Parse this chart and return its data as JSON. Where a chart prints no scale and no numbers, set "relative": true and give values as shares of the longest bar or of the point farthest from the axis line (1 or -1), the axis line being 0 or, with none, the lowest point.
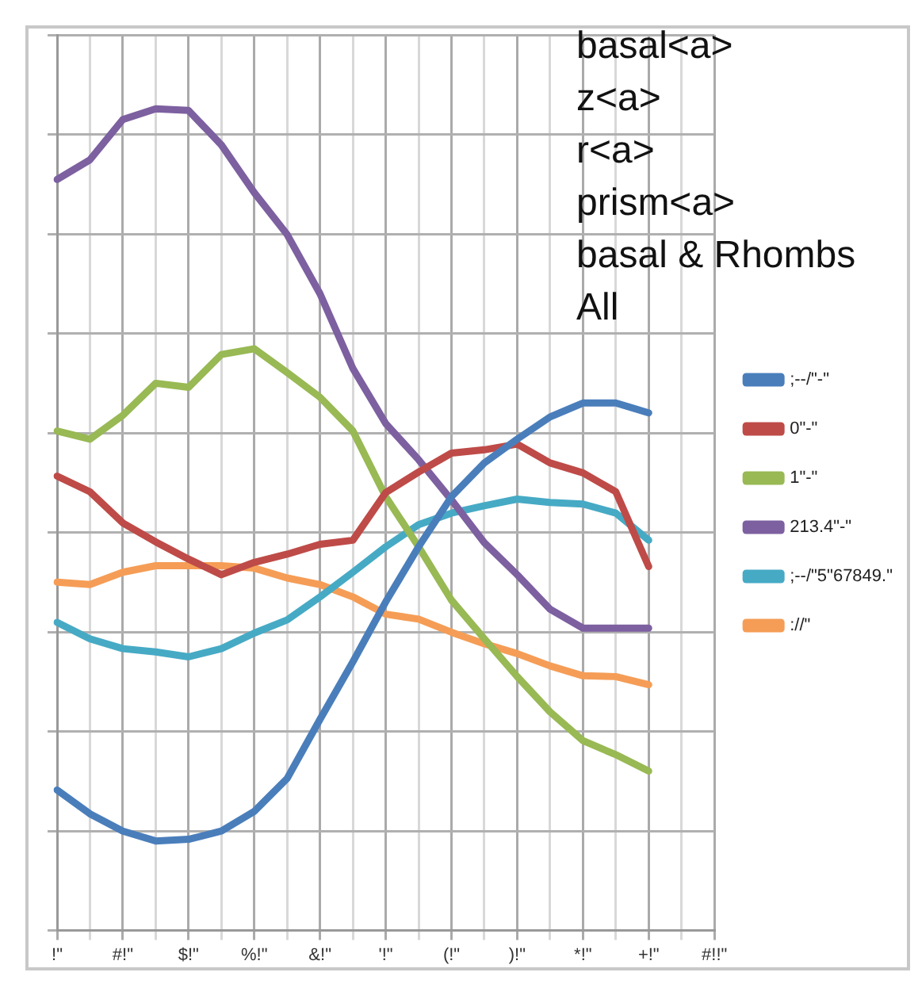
{
  "chart_data": {
    "type": "line",
    "relative": true,
    "categories": [
      "!\"",
      null,
      "#!\"",
      null,
      "$!\"",
      null,
      "%!\"",
      null,
      "&!\"",
      null,
      "'!\"",
      null,
      "(!\"",
      null,
      ")!\"",
      null,
      "*!\"",
      null,
      "+!\"",
      null,
      "#!!\""
    ],
    "series": [
      {
        "name": ";--/\"-\"",
        "color": "#4a7ebb",
        "values": [
          0.171,
          0.142,
          0.121,
          0.109,
          0.111,
          0.121,
          0.145,
          0.185,
          0.257,
          0.327,
          0.4,
          0.467,
          0.528,
          0.569,
          0.598,
          0.625,
          0.642,
          0.642,
          0.63,
          null,
          null
        ]
      },
      {
        "name": "0\"-\"",
        "color": "#be4b48",
        "values": [
          0.553,
          0.534,
          0.496,
          0.473,
          0.452,
          0.433,
          0.448,
          0.458,
          0.47,
          0.475,
          0.533,
          0.558,
          0.581,
          0.585,
          0.592,
          0.569,
          0.557,
          0.534,
          0.443,
          null,
          null
        ]
      },
      {
        "name": "1\"-\"",
        "color": "#98b954",
        "values": [
          0.608,
          0.598,
          0.627,
          0.666,
          0.661,
          0.701,
          0.708,
          0.679,
          0.649,
          0.608,
          0.528,
          0.467,
          0.402,
          0.355,
          0.309,
          0.266,
          0.231,
          0.214,
          0.194,
          null,
          null
        ]
      },
      {
        "name": "213.4\"-\"",
        "color": "#7d60a0",
        "values": [
          0.914,
          0.938,
          0.987,
          1,
          0.998,
          0.956,
          0.898,
          0.847,
          0.775,
          0.684,
          0.617,
          0.573,
          0.524,
          0.472,
          0.433,
          0.391,
          0.368,
          0.368,
          0.368,
          null,
          null
        ]
      },
      {
        "name": ";--/\"5\"67849.\"",
        "color": "#46aac5",
        "values": [
          0.375,
          0.355,
          0.343,
          0.339,
          0.333,
          0.343,
          0.362,
          0.378,
          0.406,
          0.436,
          0.467,
          0.494,
          0.508,
          0.517,
          0.525,
          0.521,
          0.519,
          0.508,
          0.475,
          null,
          null
        ]
      },
      {
        "name": "://\"",
        "color": "#f59d56",
        "values": [
          0.424,
          0.421,
          0.436,
          0.444,
          0.444,
          0.444,
          0.441,
          0.429,
          0.421,
          0.406,
          0.385,
          0.379,
          0.363,
          0.349,
          0.337,
          0.322,
          0.31,
          0.309,
          0.299,
          null,
          null
        ]
      }
    ],
    "annotations": [
      "basal<a>",
      "z<a>",
      "r<a>",
      "prism<a>",
      "basal & Rhombs",
      "All"
    ],
    "grid": true,
    "legend": "right",
    "marker": "none",
    "line_style": "solid"
  }
}
